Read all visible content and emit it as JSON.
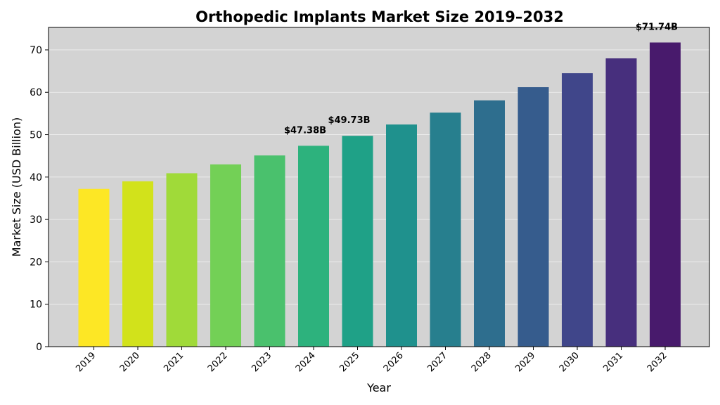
{
  "chart_data": {
    "type": "bar",
    "title": "Orthopedic Implants Market Size 2019–2032",
    "xlabel": "Year",
    "ylabel": "Market Size (USD Billion)",
    "ylim": [
      0,
      75.3
    ],
    "yticks": [
      0,
      10,
      20,
      30,
      40,
      50,
      60,
      70
    ],
    "grid": true,
    "categories": [
      "2019",
      "2020",
      "2021",
      "2022",
      "2023",
      "2024",
      "2025",
      "2026",
      "2027",
      "2028",
      "2029",
      "2030",
      "2031",
      "2032"
    ],
    "values": [
      37.2,
      39.0,
      40.9,
      43.0,
      45.1,
      47.38,
      49.73,
      52.4,
      55.2,
      58.1,
      61.2,
      64.5,
      68.0,
      71.74
    ],
    "colors": [
      "#fde725",
      "#d2e21b",
      "#a0da39",
      "#73d056",
      "#4ac16d",
      "#2db27d",
      "#1fa187",
      "#1f918d",
      "#277f8e",
      "#2e6e8e",
      "#365c8d",
      "#40468a",
      "#472f7d",
      "#481a6c"
    ],
    "annotations": [
      {
        "index": 5,
        "text": "$47.38B"
      },
      {
        "index": 6,
        "text": "$49.73B"
      },
      {
        "index": 13,
        "text": "$71.74B"
      }
    ],
    "plot_background": "#d3d3d3"
  }
}
